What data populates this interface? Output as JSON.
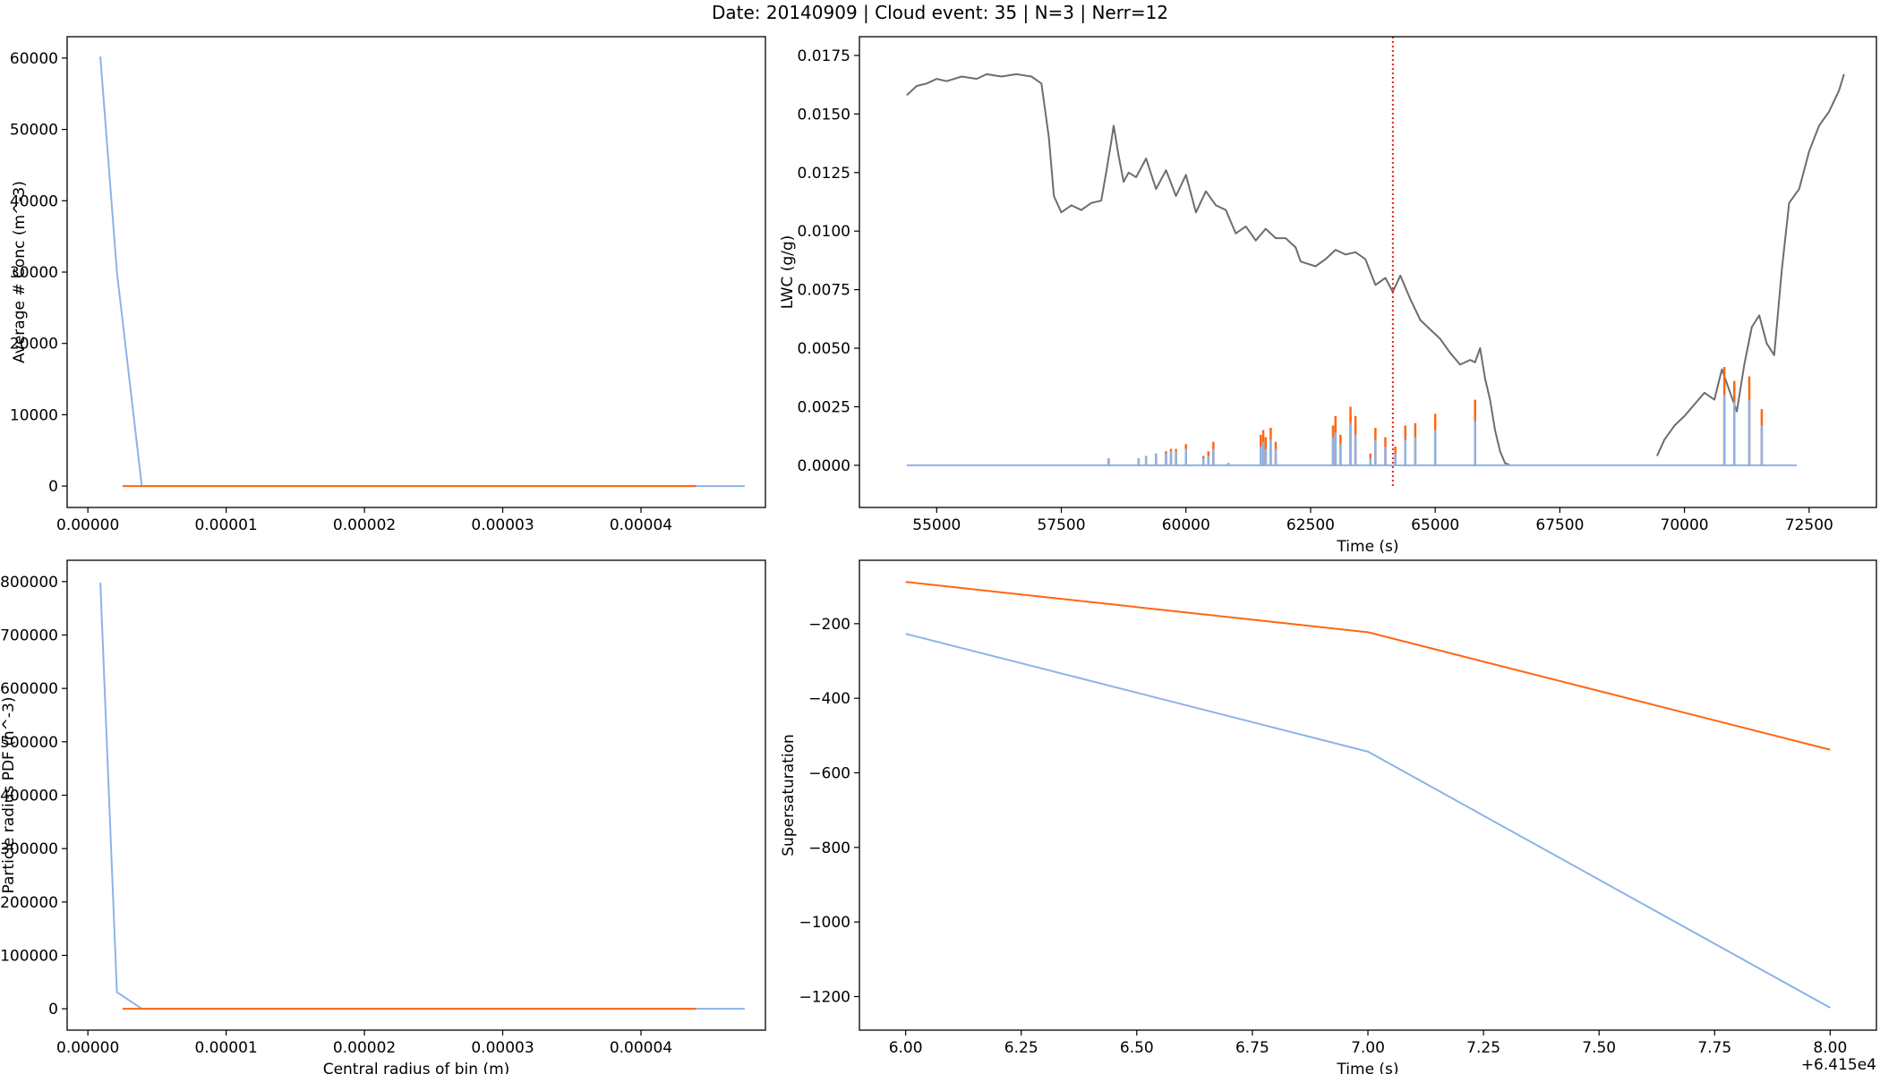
{
  "figure": {
    "suptitle": "Date: 20140909 | Cloud event: 35 | N=3 | Nerr=12"
  },
  "colors": {
    "blue": "#8cb3e6",
    "orange": "#ff6611",
    "gray": "#6d6d6d",
    "red_dotted": "#dd2222"
  },
  "chart_data": [
    {
      "id": "conc",
      "type": "line",
      "title": "",
      "xlabel": "",
      "ylabel": "Average # Conc (m^-3)",
      "xlim": [
        -1.5e-06,
        4.9e-05
      ],
      "ylim": [
        -3000,
        63000
      ],
      "xticks": [
        0.0,
        1e-05,
        2e-05,
        3e-05,
        4e-05
      ],
      "xtick_labels": [
        "0.00000",
        "0.00001",
        "0.00002",
        "0.00003",
        "0.00004"
      ],
      "yticks": [
        0,
        10000,
        20000,
        30000,
        40000,
        50000,
        60000
      ],
      "ytick_labels": [
        "0",
        "10000",
        "20000",
        "30000",
        "40000",
        "50000",
        "60000"
      ],
      "grid": false,
      "series": [
        {
          "color": "blue",
          "x": [
            9e-07,
            2.1e-06,
            3.9e-06,
            4.4e-05,
            4.75e-05
          ],
          "y": [
            60200,
            30000,
            0,
            0,
            0
          ]
        },
        {
          "color": "orange",
          "x": [
            2.5e-06,
            3.9e-06,
            4.4e-05
          ],
          "y": [
            0,
            0,
            0
          ]
        }
      ]
    },
    {
      "id": "lwc",
      "type": "line",
      "title": "",
      "xlabel": "Time (s)",
      "ylabel": "LWC (g/g)",
      "xlim": [
        53450,
        73850
      ],
      "ylim": [
        -0.0018,
        0.0183
      ],
      "xticks": [
        55000,
        57500,
        60000,
        62500,
        65000,
        67500,
        70000,
        72500
      ],
      "xtick_labels": [
        "55000",
        "57500",
        "60000",
        "62500",
        "65000",
        "67500",
        "70000",
        "72500"
      ],
      "yticks": [
        0.0,
        0.0025,
        0.005,
        0.0075,
        0.01,
        0.0125,
        0.015,
        0.0175
      ],
      "ytick_labels": [
        "0.0000",
        "0.0025",
        "0.0050",
        "0.0075",
        "0.0100",
        "0.0125",
        "0.0150",
        "0.0175"
      ],
      "grid": false,
      "vline": {
        "x": 64150,
        "y_from": -0.0009,
        "y_to": 0.0183,
        "color": "red_dotted",
        "style": "dotted"
      },
      "series": [
        {
          "color": "gray",
          "segments": [
            {
              "x": [
                54400,
                54600,
                54800,
                55000,
                55200,
                55500,
                55800,
                56000,
                56300,
                56600,
                56900,
                57100,
                57250,
                57350,
                57500,
                57700,
                57900,
                58100,
                58300,
                58400,
                58500,
                58550,
                58650,
                58750,
                58850,
                59000,
                59200,
                59400,
                59600,
                59800,
                60000,
                60200,
                60400,
                60600,
                60800,
                61000,
                61200,
                61400,
                61600,
                61800,
                62000,
                62200,
                62300,
                62600,
                62800,
                63000,
                63200,
                63400,
                63600,
                63800,
                64000,
                64150,
                64300,
                64500,
                64700,
                64900,
                65100,
                65300,
                65500,
                65700,
                65800,
                65900,
                66000,
                66100,
                66200,
                66300,
                66400,
                66500
              ],
              "y": [
                0.0158,
                0.0162,
                0.0163,
                0.0165,
                0.0164,
                0.0166,
                0.0165,
                0.0167,
                0.0166,
                0.0167,
                0.0166,
                0.0163,
                0.014,
                0.0115,
                0.0108,
                0.0111,
                0.0109,
                0.0112,
                0.0113,
                0.0125,
                0.0138,
                0.0145,
                0.0132,
                0.0121,
                0.0125,
                0.0123,
                0.0131,
                0.0118,
                0.0126,
                0.0115,
                0.0124,
                0.0108,
                0.0117,
                0.0111,
                0.0109,
                0.0099,
                0.0102,
                0.0096,
                0.0101,
                0.0097,
                0.0097,
                0.0093,
                0.0087,
                0.0085,
                0.0088,
                0.0092,
                0.009,
                0.0091,
                0.0088,
                0.0077,
                0.008,
                0.0074,
                0.0081,
                0.0071,
                0.0062,
                0.0058,
                0.0054,
                0.0048,
                0.0043,
                0.0045,
                0.0044,
                0.005,
                0.0037,
                0.0028,
                0.0015,
                0.0006,
                0.0001,
                0.0
              ]
            },
            {
              "x": [
                69450,
                69600,
                69800,
                70000,
                70200,
                70400,
                70600,
                70750,
                70900,
                71050,
                71200,
                71350,
                71500,
                71650,
                71800,
                71950,
                72100,
                72300,
                72500,
                72700,
                72900,
                73100,
                73200
              ],
              "y": [
                0.0004,
                0.0011,
                0.0017,
                0.0021,
                0.0026,
                0.0031,
                0.0028,
                0.0041,
                0.0032,
                0.0023,
                0.0043,
                0.0059,
                0.0064,
                0.0052,
                0.0047,
                0.0083,
                0.0112,
                0.0118,
                0.0134,
                0.0145,
                0.0151,
                0.016,
                0.0167
              ]
            }
          ]
        },
        {
          "color": "blue",
          "style": "baseline",
          "x": [
            54400,
            72250
          ],
          "y": [
            0,
            0
          ]
        },
        {
          "color": "orange",
          "style": "spikes",
          "x": [
            58450,
            59050,
            59200,
            59400,
            59600,
            59700,
            59800,
            60000,
            60350,
            60450,
            60550,
            60850,
            61500,
            61550,
            61600,
            61700,
            61800,
            62950,
            63000,
            63100,
            63300,
            63400,
            63700,
            63800,
            64000,
            64200,
            64400,
            64600,
            65000,
            65800,
            70800,
            71000,
            71300,
            71550,
            72250
          ],
          "y": [
            0.0003,
            0.0003,
            0.0004,
            0.0005,
            0.0006,
            0.0007,
            0.0007,
            0.0009,
            0.0004,
            0.0006,
            0.001,
            0.0001,
            0.0013,
            0.0015,
            0.0012,
            0.0016,
            0.001,
            0.0017,
            0.0021,
            0.0013,
            0.0025,
            0.0021,
            0.0005,
            0.0016,
            0.0012,
            0.0008,
            0.0017,
            0.0018,
            0.0022,
            0.0028,
            0.0042,
            0.0036,
            0.0038,
            0.0024,
            0.0
          ]
        },
        {
          "color": "blue",
          "style": "spikes",
          "x": [
            58450,
            59050,
            59200,
            59400,
            59600,
            59700,
            59800,
            60000,
            60350,
            60450,
            60550,
            60850,
            61500,
            61550,
            61600,
            61700,
            61800,
            62950,
            63000,
            63100,
            63300,
            63400,
            63700,
            63800,
            64000,
            64200,
            64400,
            64600,
            65000,
            65800,
            70800,
            71000,
            71300,
            71550
          ],
          "y": [
            0.0003,
            0.0003,
            0.0004,
            0.0005,
            0.0005,
            0.0006,
            0.0006,
            0.0007,
            0.0003,
            0.0004,
            0.0007,
            0.0001,
            0.0008,
            0.001,
            0.0007,
            0.0011,
            0.0007,
            0.0012,
            0.0014,
            0.0009,
            0.0018,
            0.0013,
            0.0003,
            0.0011,
            0.0008,
            0.0005,
            0.0011,
            0.0012,
            0.0015,
            0.0019,
            0.003,
            0.0027,
            0.0028,
            0.0017
          ]
        }
      ]
    },
    {
      "id": "pdf",
      "type": "line",
      "title": "",
      "xlabel": "Central radius of bin (m)",
      "ylabel": "Particle radius PDF (n^-3)",
      "xlim": [
        -1.5e-06,
        4.9e-05
      ],
      "ylim": [
        -40000,
        840000
      ],
      "xticks": [
        0.0,
        1e-05,
        2e-05,
        3e-05,
        4e-05
      ],
      "xtick_labels": [
        "0.00000",
        "0.00001",
        "0.00002",
        "0.00003",
        "0.00004"
      ],
      "yticks": [
        0,
        100000,
        200000,
        300000,
        400000,
        500000,
        600000,
        700000,
        800000
      ],
      "ytick_labels": [
        "0",
        "100000",
        "200000",
        "300000",
        "400000",
        "500000",
        "600000",
        "700000",
        "800000"
      ],
      "grid": false,
      "series": [
        {
          "color": "blue",
          "x": [
            9e-07,
            2.1e-06,
            3.9e-06,
            4.4e-05,
            4.75e-05
          ],
          "y": [
            798000,
            31000,
            0,
            0,
            0
          ]
        },
        {
          "color": "orange",
          "x": [
            2.5e-06,
            3.9e-06,
            4.4e-05
          ],
          "y": [
            0,
            0,
            0
          ]
        }
      ]
    },
    {
      "id": "ss",
      "type": "line",
      "title": "",
      "xlabel": "Time (s)",
      "ylabel": "Supersaturation",
      "x_offset_label": "+6.415e4",
      "xlim": [
        5.9,
        8.1
      ],
      "ylim": [
        -1290,
        -30
      ],
      "xticks": [
        6.0,
        6.25,
        6.5,
        6.75,
        7.0,
        7.25,
        7.5,
        7.75,
        8.0
      ],
      "xtick_labels": [
        "6.00",
        "6.25",
        "6.50",
        "6.75",
        "7.00",
        "7.25",
        "7.50",
        "7.75",
        "8.00"
      ],
      "yticks": [
        -200,
        -400,
        -600,
        -800,
        -1000,
        -1200
      ],
      "ytick_labels": [
        "−200",
        "−400",
        "−600",
        "−800",
        "−1000",
        "−1200"
      ],
      "grid": false,
      "series": [
        {
          "color": "orange",
          "x": [
            6.0,
            7.0,
            8.0
          ],
          "y": [
            -88,
            -223,
            -538
          ]
        },
        {
          "color": "blue",
          "x": [
            6.0,
            7.0,
            8.0
          ],
          "y": [
            -227,
            -543,
            -1230
          ]
        }
      ]
    }
  ]
}
